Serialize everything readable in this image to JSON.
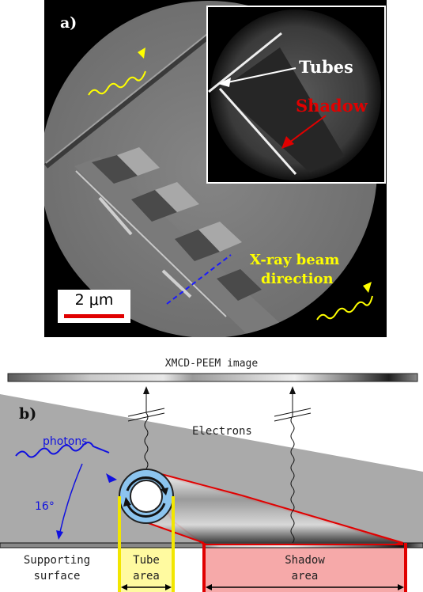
{
  "panel_a": {
    "label": "a)",
    "inset": {
      "tubes_label": "Tubes",
      "shadow_label": "Shadow"
    },
    "beam_label_line1": "X-ray beam",
    "beam_label_line2": "direction",
    "scale_bar": "2 μm"
  },
  "panel_b": {
    "label": "b)",
    "detector_label": "XMCD-PEEM image",
    "electrons_label": "Electrons",
    "photons_label": "photons",
    "angle_label": "16°",
    "surface_label_line1": "Supporting",
    "surface_label_line2": "surface",
    "tube_area_line1": "Tube",
    "tube_area_line2": "area",
    "shadow_area_line1": "Shadow",
    "shadow_area_line2": "area"
  },
  "colors": {
    "yellow": "#ffff00",
    "red": "#e00000",
    "blue": "#1010e0",
    "shadow_fill": "#f4a6a6",
    "tube_fill": "#fffaa0",
    "tube_blue": "#8cc4ee"
  }
}
